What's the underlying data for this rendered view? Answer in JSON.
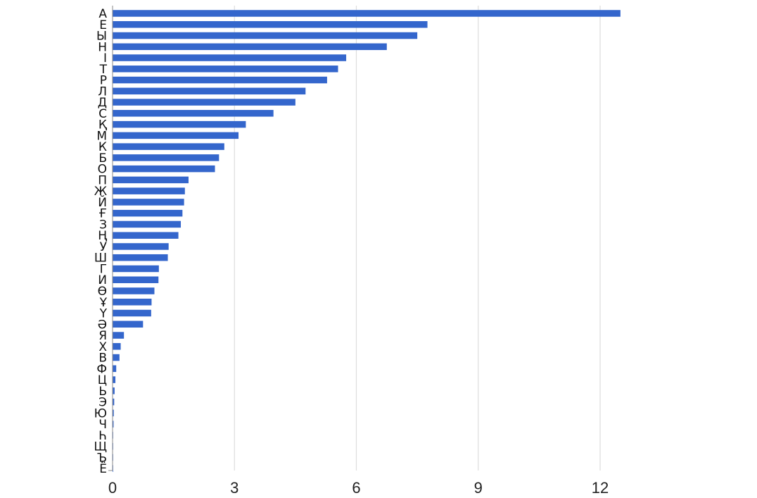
{
  "chart_data": {
    "type": "bar",
    "orientation": "horizontal",
    "title": "",
    "xlabel": "",
    "ylabel": "",
    "xlim": [
      0,
      14.5
    ],
    "xticks": [
      0,
      3,
      6,
      9,
      12
    ],
    "xtick_labels": [
      "0",
      "3",
      "6",
      "9",
      "12"
    ],
    "grid": "vertical",
    "bar_color": "#3466CC",
    "grid_color": "#DDDDDD",
    "categories": [
      "А",
      "Е",
      "Ы",
      "Н",
      "І",
      "Т",
      "Р",
      "Л",
      "Д",
      "С",
      "Қ",
      "М",
      "К",
      "Б",
      "О",
      "П",
      "Ж",
      "Й",
      "Ғ",
      "З",
      "Ң",
      "У",
      "Ш",
      "Г",
      "И",
      "Ө",
      "Ұ",
      "Ү",
      "Ә",
      "Я",
      "Х",
      "В",
      "Ф",
      "Ц",
      "Ь",
      "Э",
      "Ю",
      "Ч",
      "Һ",
      "Щ",
      "Ъ",
      "Ё"
    ],
    "values": [
      12.5,
      7.75,
      7.5,
      6.75,
      5.75,
      5.55,
      5.28,
      4.75,
      4.5,
      3.96,
      3.28,
      3.1,
      2.75,
      2.62,
      2.52,
      1.87,
      1.78,
      1.76,
      1.72,
      1.68,
      1.62,
      1.38,
      1.36,
      1.14,
      1.13,
      1.03,
      0.96,
      0.95,
      0.75,
      0.28,
      0.2,
      0.17,
      0.09,
      0.07,
      0.05,
      0.04,
      0.03,
      0.025,
      0.01,
      0.01,
      0.005,
      0.005
    ]
  }
}
